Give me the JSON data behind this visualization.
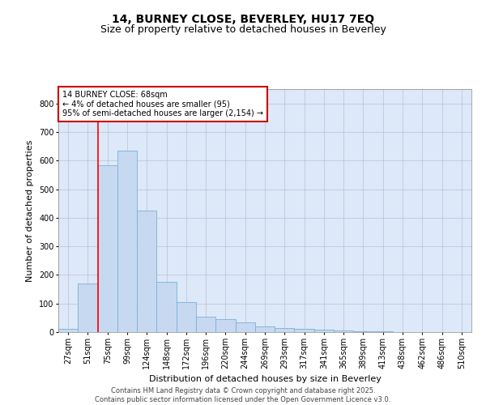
{
  "title1": "14, BURNEY CLOSE, BEVERLEY, HU17 7EQ",
  "title2": "Size of property relative to detached houses in Beverley",
  "xlabel": "Distribution of detached houses by size in Beverley",
  "ylabel": "Number of detached properties",
  "categories": [
    "27sqm",
    "51sqm",
    "75sqm",
    "99sqm",
    "124sqm",
    "148sqm",
    "172sqm",
    "196sqm",
    "220sqm",
    "244sqm",
    "269sqm",
    "293sqm",
    "317sqm",
    "341sqm",
    "365sqm",
    "389sqm",
    "413sqm",
    "438sqm",
    "462sqm",
    "486sqm",
    "510sqm"
  ],
  "values": [
    10,
    170,
    585,
    635,
    425,
    175,
    105,
    55,
    45,
    35,
    20,
    15,
    10,
    8,
    5,
    3,
    2,
    1,
    1,
    1,
    1
  ],
  "bar_color": "#c6d9f1",
  "bar_edge_color": "#7bafd4",
  "red_line_x": 1.5,
  "annotation_title": "14 BURNEY CLOSE: 68sqm",
  "annotation_line1": "← 4% of detached houses are smaller (95)",
  "annotation_line2": "95% of semi-detached houses are larger (2,154) →",
  "annotation_box_color": "#ffffff",
  "annotation_box_edge_color": "#cc0000",
  "ylim": [
    0,
    850
  ],
  "yticks": [
    0,
    100,
    200,
    300,
    400,
    500,
    600,
    700,
    800
  ],
  "footer1": "Contains HM Land Registry data © Crown copyright and database right 2025.",
  "footer2": "Contains public sector information licensed under the Open Government Licence v3.0.",
  "bg_color": "#dde8f8",
  "fig_bg_color": "#ffffff",
  "title_fontsize": 10,
  "subtitle_fontsize": 9,
  "annotation_fontsize": 7,
  "axis_label_fontsize": 8,
  "tick_fontsize": 7,
  "footer_fontsize": 6
}
